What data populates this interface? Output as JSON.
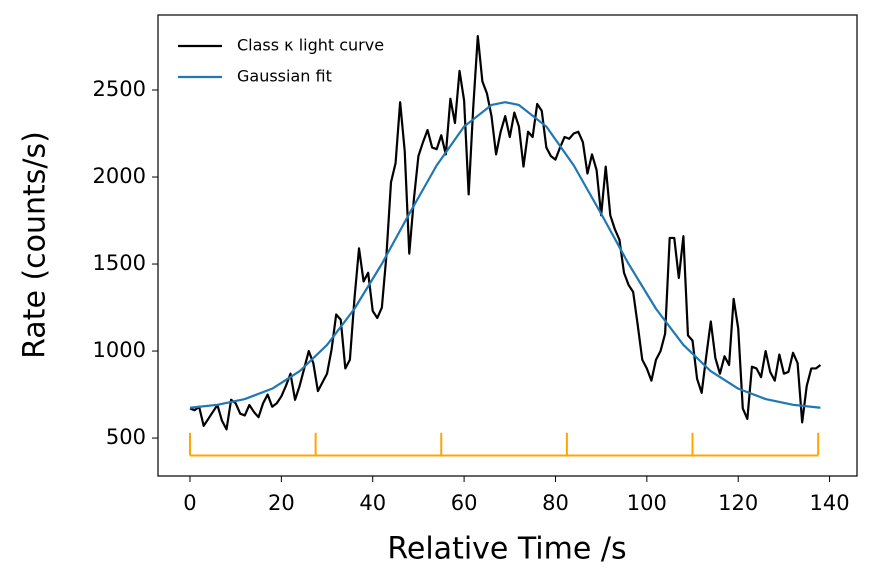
{
  "chart_data": {
    "type": "line",
    "xlabel": "Relative Time /s",
    "ylabel": "Rate (counts/s)",
    "xlim": [
      -7,
      146
    ],
    "ylim": [
      282,
      2931
    ],
    "xticks": [
      0,
      20,
      40,
      60,
      80,
      100,
      120,
      140
    ],
    "yticks": [
      500,
      1000,
      1500,
      2000,
      2500
    ],
    "grid": false,
    "legend": "upper left",
    "series": [
      {
        "name": "Class κ light curve",
        "color": "#000000",
        "x": [
          0,
          1,
          2,
          3,
          4,
          5,
          6,
          7,
          8,
          9,
          10,
          11,
          12,
          13,
          14,
          15,
          16,
          17,
          18,
          19,
          20,
          21,
          22,
          23,
          24,
          25,
          26,
          27,
          28,
          29,
          30,
          31,
          32,
          33,
          34,
          35,
          36,
          37,
          38,
          39,
          40,
          41,
          42,
          43,
          44,
          45,
          46,
          47,
          48,
          49,
          50,
          51,
          52,
          53,
          54,
          55,
          56,
          57,
          58,
          59,
          60,
          61,
          62,
          63,
          64,
          65,
          66,
          67,
          68,
          69,
          70,
          71,
          72,
          73,
          74,
          75,
          76,
          77,
          78,
          79,
          80,
          81,
          82,
          83,
          84,
          85,
          86,
          87,
          88,
          89,
          90,
          91,
          92,
          93,
          94,
          95,
          96,
          97,
          98,
          99,
          100,
          101,
          102,
          103,
          104,
          105,
          106,
          107,
          108,
          109,
          110,
          111,
          112,
          113,
          114,
          115,
          116,
          117,
          118,
          119,
          120,
          121,
          122,
          123,
          124,
          125,
          126,
          127,
          128,
          129,
          130,
          131,
          132,
          133,
          134,
          135,
          136,
          137,
          138
        ],
        "values": [
          670,
          660,
          680,
          570,
          610,
          650,
          690,
          600,
          550,
          720,
          700,
          640,
          630,
          690,
          650,
          620,
          700,
          750,
          680,
          700,
          740,
          800,
          870,
          720,
          800,
          900,
          1000,
          930,
          770,
          820,
          870,
          1010,
          1210,
          1180,
          900,
          950,
          1300,
          1590,
          1400,
          1450,
          1230,
          1190,
          1250,
          1550,
          1970,
          2080,
          2430,
          2150,
          1560,
          1870,
          2120,
          2200,
          2270,
          2170,
          2160,
          2240,
          2130,
          2450,
          2310,
          2610,
          2440,
          1900,
          2400,
          2810,
          2550,
          2480,
          2350,
          2130,
          2260,
          2350,
          2230,
          2370,
          2290,
          2060,
          2260,
          2230,
          2420,
          2380,
          2170,
          2120,
          2100,
          2170,
          2230,
          2220,
          2250,
          2260,
          2200,
          2020,
          2130,
          2040,
          1780,
          2060,
          1780,
          1700,
          1640,
          1450,
          1380,
          1340,
          1150,
          950,
          900,
          830,
          950,
          1000,
          1100,
          1650,
          1650,
          1420,
          1660,
          1090,
          1060,
          840,
          760,
          970,
          1170,
          960,
          870,
          970,
          920,
          1300,
          1130,
          670,
          610,
          910,
          900,
          850,
          1000,
          880,
          830,
          980,
          870,
          880,
          990,
          930,
          590,
          800,
          900,
          900,
          920
        ]
      },
      {
        "name": "Gaussian fit",
        "color": "#1f77b4",
        "x": [
          0,
          6,
          12,
          18,
          24,
          30,
          36,
          42,
          48,
          54,
          60,
          66,
          69,
          72,
          78,
          84,
          90,
          96,
          102,
          108,
          114,
          120,
          126,
          132,
          138
        ],
        "values": [
          674,
          691,
          724,
          784,
          884,
          1035,
          1243,
          1501,
          1789,
          2067,
          2290,
          2414,
          2430,
          2414,
          2290,
          2067,
          1789,
          1501,
          1243,
          1035,
          884,
          784,
          724,
          691,
          674
        ]
      }
    ],
    "markers": {
      "color": "#ffa500",
      "x": [
        0,
        27.5,
        55,
        82.5,
        110,
        137.5
      ],
      "y": 400,
      "top": 530
    }
  }
}
